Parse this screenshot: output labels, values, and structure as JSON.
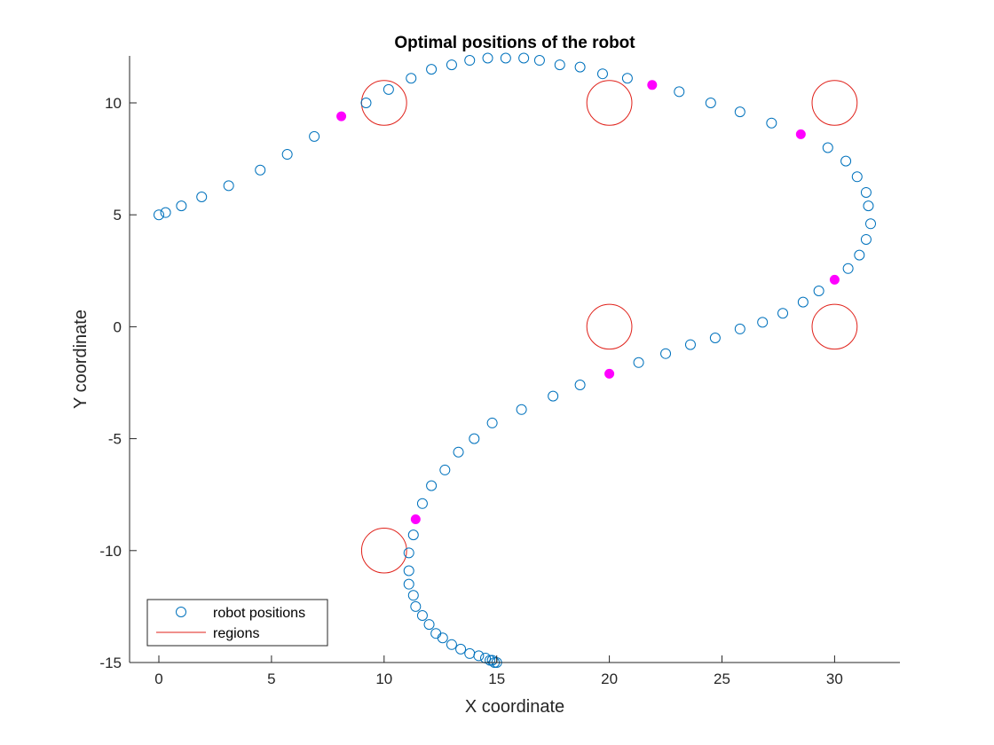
{
  "chart_data": {
    "type": "scatter",
    "title": "Optimal positions of the robot",
    "xlabel": "X coordinate",
    "ylabel": "Y coordinate",
    "xlim": [
      -1.3,
      32.9
    ],
    "ylim": [
      -15,
      12.1
    ],
    "xticks": [
      0,
      5,
      10,
      15,
      20,
      25,
      30
    ],
    "yticks": [
      -15,
      -10,
      -5,
      0,
      5,
      10
    ],
    "grid": false,
    "legend_position": "bottom-left",
    "series": [
      {
        "name": "robot positions",
        "color": "#0072BD",
        "marker": "open-circle",
        "points": [
          [
            0.0,
            5.0
          ],
          [
            0.3,
            5.1
          ],
          [
            1.0,
            5.4
          ],
          [
            1.9,
            5.8
          ],
          [
            3.1,
            6.3
          ],
          [
            4.5,
            7.0
          ],
          [
            5.7,
            7.7
          ],
          [
            6.9,
            8.5
          ],
          [
            9.2,
            10.0
          ],
          [
            10.2,
            10.6
          ],
          [
            11.2,
            11.1
          ],
          [
            12.1,
            11.5
          ],
          [
            13.0,
            11.7
          ],
          [
            13.8,
            11.9
          ],
          [
            14.6,
            12.0
          ],
          [
            15.4,
            12.0
          ],
          [
            16.2,
            12.0
          ],
          [
            16.9,
            11.9
          ],
          [
            17.8,
            11.7
          ],
          [
            18.7,
            11.6
          ],
          [
            19.7,
            11.3
          ],
          [
            20.8,
            11.1
          ],
          [
            23.1,
            10.5
          ],
          [
            24.5,
            10.0
          ],
          [
            25.8,
            9.6
          ],
          [
            27.2,
            9.1
          ],
          [
            29.7,
            8.0
          ],
          [
            30.5,
            7.4
          ],
          [
            31.0,
            6.7
          ],
          [
            31.4,
            6.0
          ],
          [
            31.5,
            5.4
          ],
          [
            31.6,
            4.6
          ],
          [
            31.4,
            3.9
          ],
          [
            31.1,
            3.2
          ],
          [
            30.6,
            2.6
          ],
          [
            29.3,
            1.6
          ],
          [
            28.6,
            1.1
          ],
          [
            27.7,
            0.6
          ],
          [
            26.8,
            0.2
          ],
          [
            25.8,
            -0.1
          ],
          [
            24.7,
            -0.5
          ],
          [
            23.6,
            -0.8
          ],
          [
            22.5,
            -1.2
          ],
          [
            21.3,
            -1.6
          ],
          [
            18.7,
            -2.6
          ],
          [
            17.5,
            -3.1
          ],
          [
            16.1,
            -3.7
          ],
          [
            14.8,
            -4.3
          ],
          [
            14.0,
            -5.0
          ],
          [
            13.3,
            -5.6
          ],
          [
            12.7,
            -6.4
          ],
          [
            12.1,
            -7.1
          ],
          [
            11.7,
            -7.9
          ],
          [
            11.3,
            -9.3
          ],
          [
            11.1,
            -10.1
          ],
          [
            11.1,
            -10.9
          ],
          [
            11.1,
            -11.5
          ],
          [
            11.3,
            -12.0
          ],
          [
            11.4,
            -12.5
          ],
          [
            11.7,
            -12.9
          ],
          [
            12.0,
            -13.3
          ],
          [
            12.3,
            -13.7
          ],
          [
            12.6,
            -13.9
          ],
          [
            13.0,
            -14.2
          ],
          [
            13.4,
            -14.4
          ],
          [
            13.8,
            -14.6
          ],
          [
            14.2,
            -14.7
          ],
          [
            14.5,
            -14.8
          ],
          [
            14.7,
            -14.9
          ],
          [
            14.8,
            -14.9
          ],
          [
            14.9,
            -15.0
          ],
          [
            15.0,
            -15.0
          ]
        ]
      },
      {
        "name": "",
        "color": "#FF00FF",
        "marker": "filled-circle",
        "points": [
          [
            8.1,
            9.4
          ],
          [
            21.9,
            10.8
          ],
          [
            28.5,
            8.6
          ],
          [
            30.0,
            2.1
          ],
          [
            20.0,
            -2.1
          ],
          [
            11.4,
            -8.6
          ]
        ]
      }
    ],
    "regions": {
      "name": "regions",
      "color": "#E0211A",
      "radius": 1.0,
      "centers": [
        [
          10,
          10
        ],
        [
          20,
          10
        ],
        [
          30,
          10
        ],
        [
          20,
          0
        ],
        [
          30,
          0
        ],
        [
          10,
          -10
        ]
      ]
    }
  }
}
